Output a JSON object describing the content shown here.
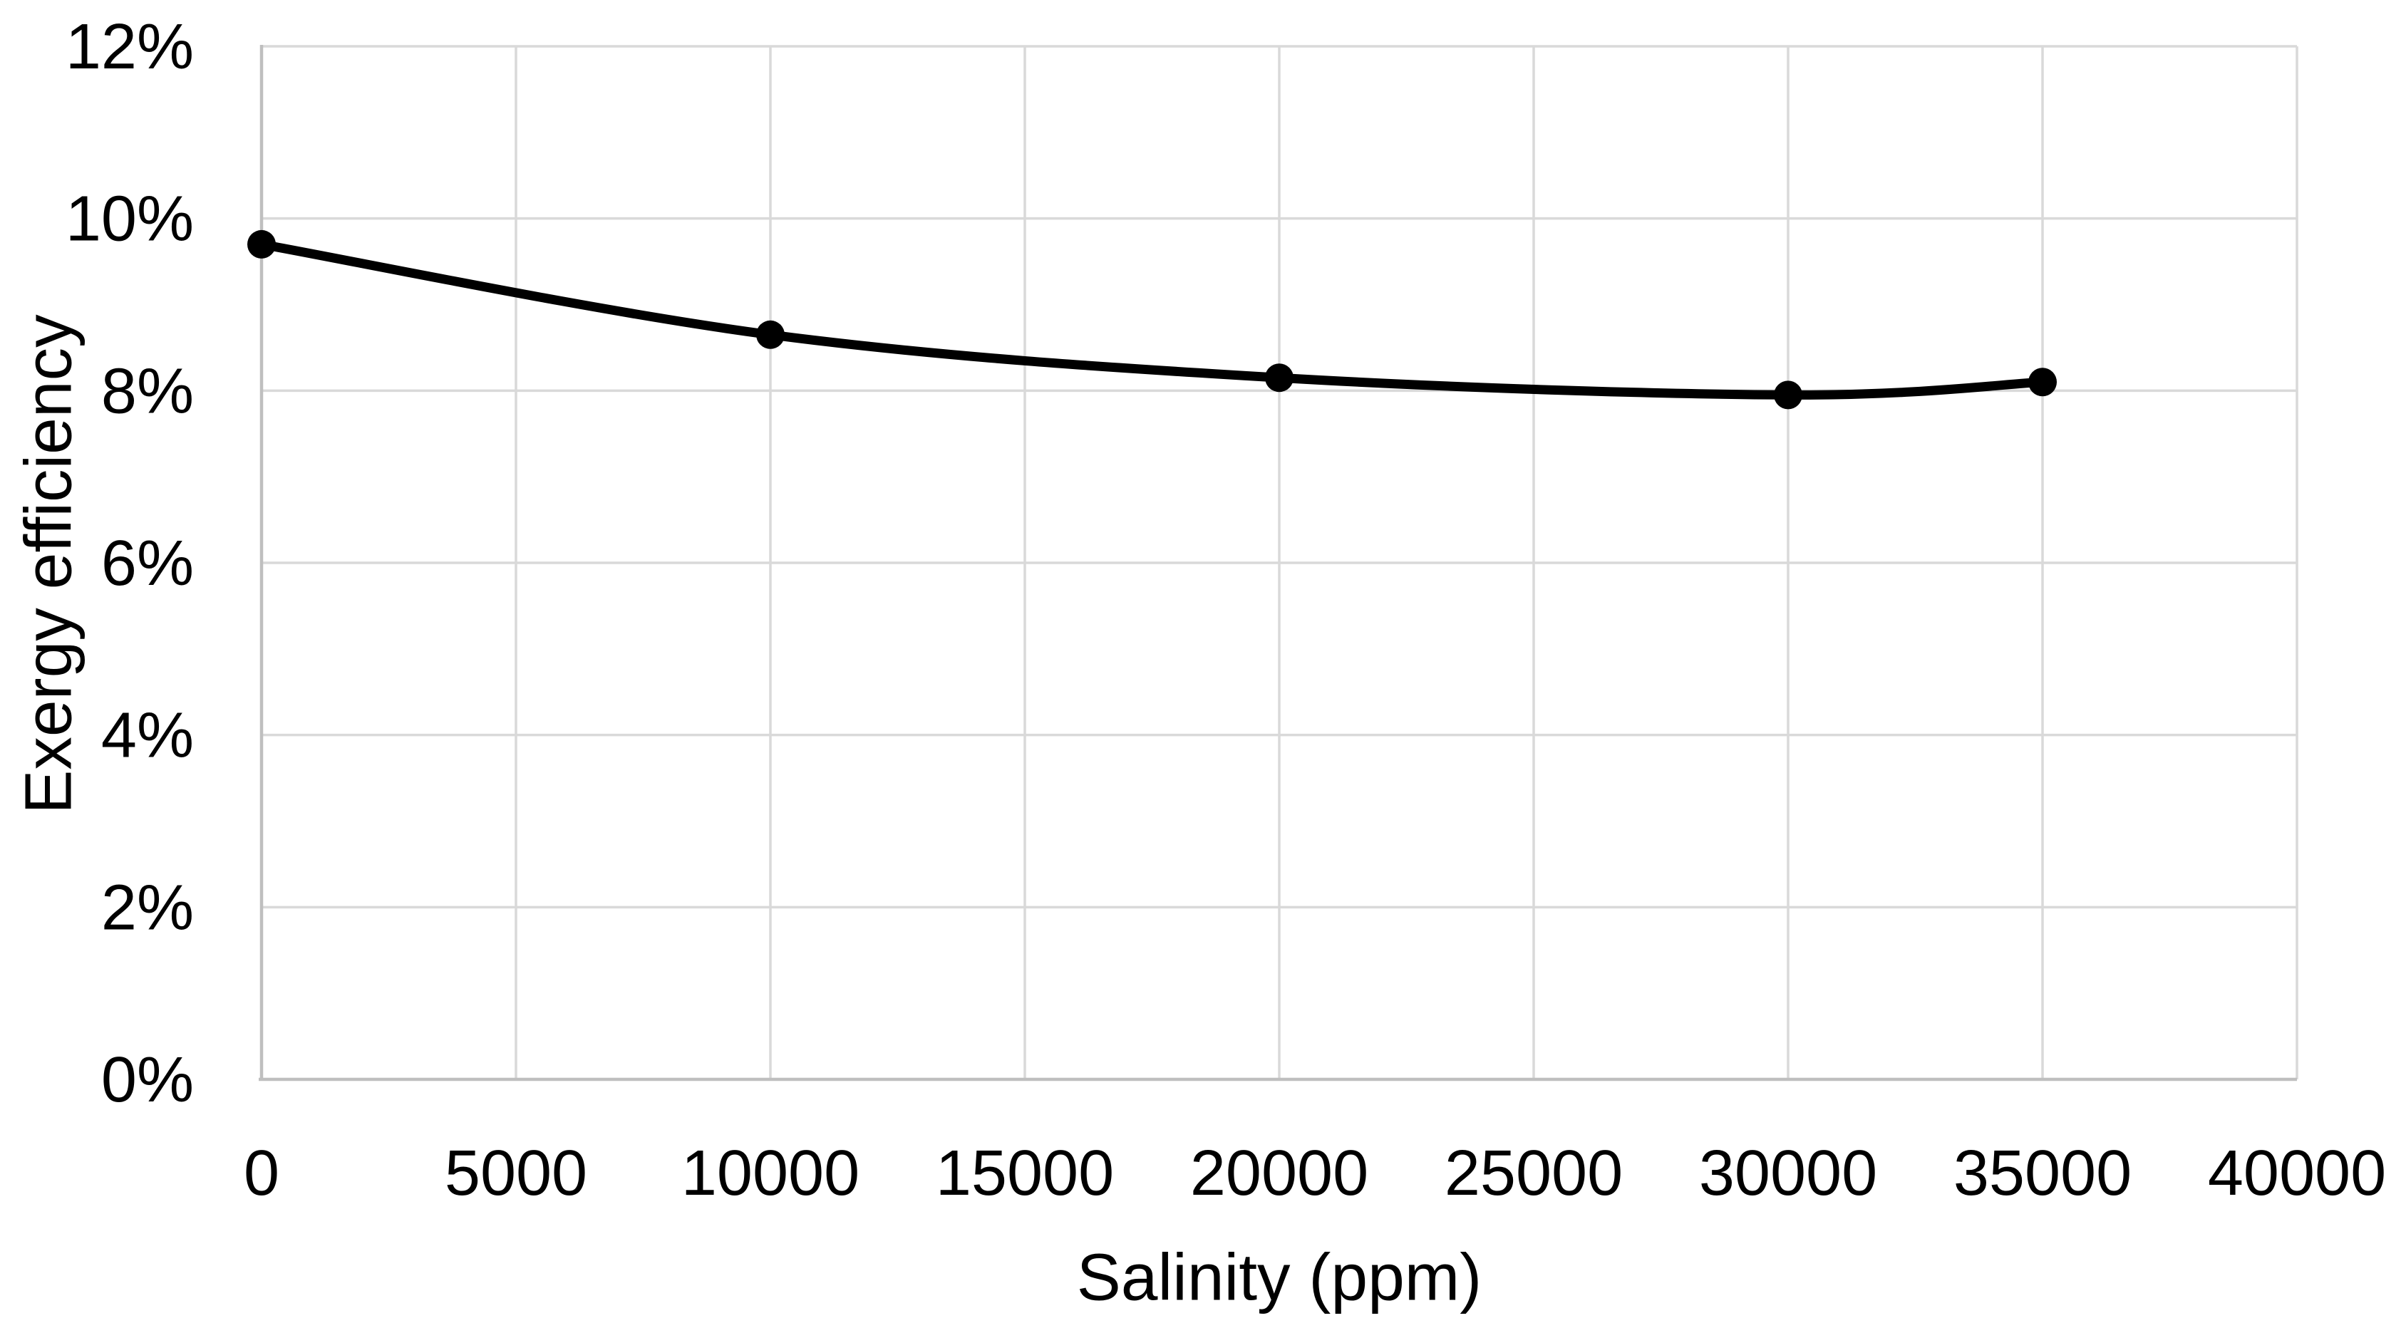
{
  "chart_data": {
    "type": "line",
    "title": "",
    "xlabel": "Salinity (ppm)",
    "ylabel": "Exergy efficiency",
    "x": [
      0,
      10000,
      20000,
      30000,
      35000
    ],
    "series": [
      {
        "name": "Exergy efficiency",
        "values_percent": [
          9.7,
          8.65,
          8.15,
          7.95,
          8.1
        ]
      }
    ],
    "xlim": [
      0,
      40000
    ],
    "ylim_percent": [
      0,
      12
    ],
    "x_ticks": [
      0,
      5000,
      10000,
      15000,
      20000,
      25000,
      30000,
      35000,
      40000
    ],
    "y_ticks_percent": [
      0,
      2,
      4,
      6,
      8,
      10,
      12
    ],
    "y_tick_suffix": "%",
    "grid": true,
    "legend": "none",
    "smooth_line": true,
    "marker": "circle",
    "colors": {
      "line": "#000000",
      "marker": "#000000",
      "gridline": "#d9d9d9",
      "axis_line": "#bfbfbf",
      "text": "#000000",
      "background": "#ffffff"
    }
  }
}
